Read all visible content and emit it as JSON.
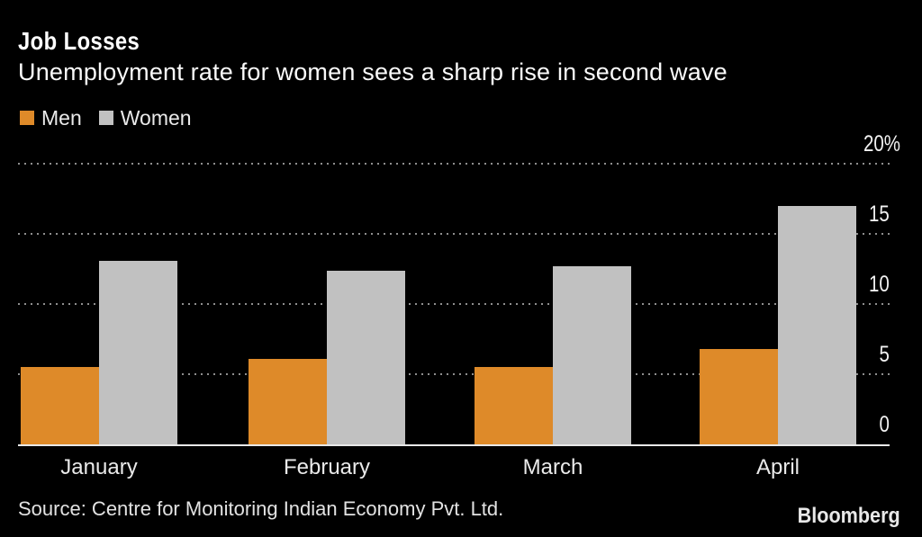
{
  "header": {
    "title": "Job Losses",
    "subtitle": "Unemployment rate for women sees a sharp rise in second wave"
  },
  "legend": {
    "items": [
      {
        "label": "Men",
        "color": "#DE8A29"
      },
      {
        "label": "Women",
        "color": "#C1C1C1"
      }
    ]
  },
  "footer": {
    "source": "Source: Centre for Monitoring Indian Economy Pvt. Ltd.",
    "brand": "Bloomberg"
  },
  "chart_data": {
    "type": "bar",
    "title": "Job Losses",
    "subtitle": "Unemployment rate for women sees a sharp rise in second wave",
    "categories": [
      "January",
      "February",
      "March",
      "April"
    ],
    "series": [
      {
        "name": "Men",
        "color": "#DE8A29",
        "values": [
          5.5,
          6.1,
          5.5,
          6.8
        ]
      },
      {
        "name": "Women",
        "color": "#C1C1C1",
        "values": [
          13.1,
          12.4,
          12.7,
          17.0
        ]
      }
    ],
    "xlabel": "",
    "ylabel": "",
    "ylim": [
      0,
      20
    ],
    "yticks": [
      0,
      5,
      10,
      15,
      20
    ],
    "ytick_labels": [
      "0",
      "5",
      "10",
      "15",
      "20%"
    ],
    "grid": "horizontal-dotted",
    "legend_position": "top-left",
    "axis_side": "right",
    "background": "#000000",
    "source": "Centre for Monitoring Indian Economy Pvt. Ltd."
  }
}
